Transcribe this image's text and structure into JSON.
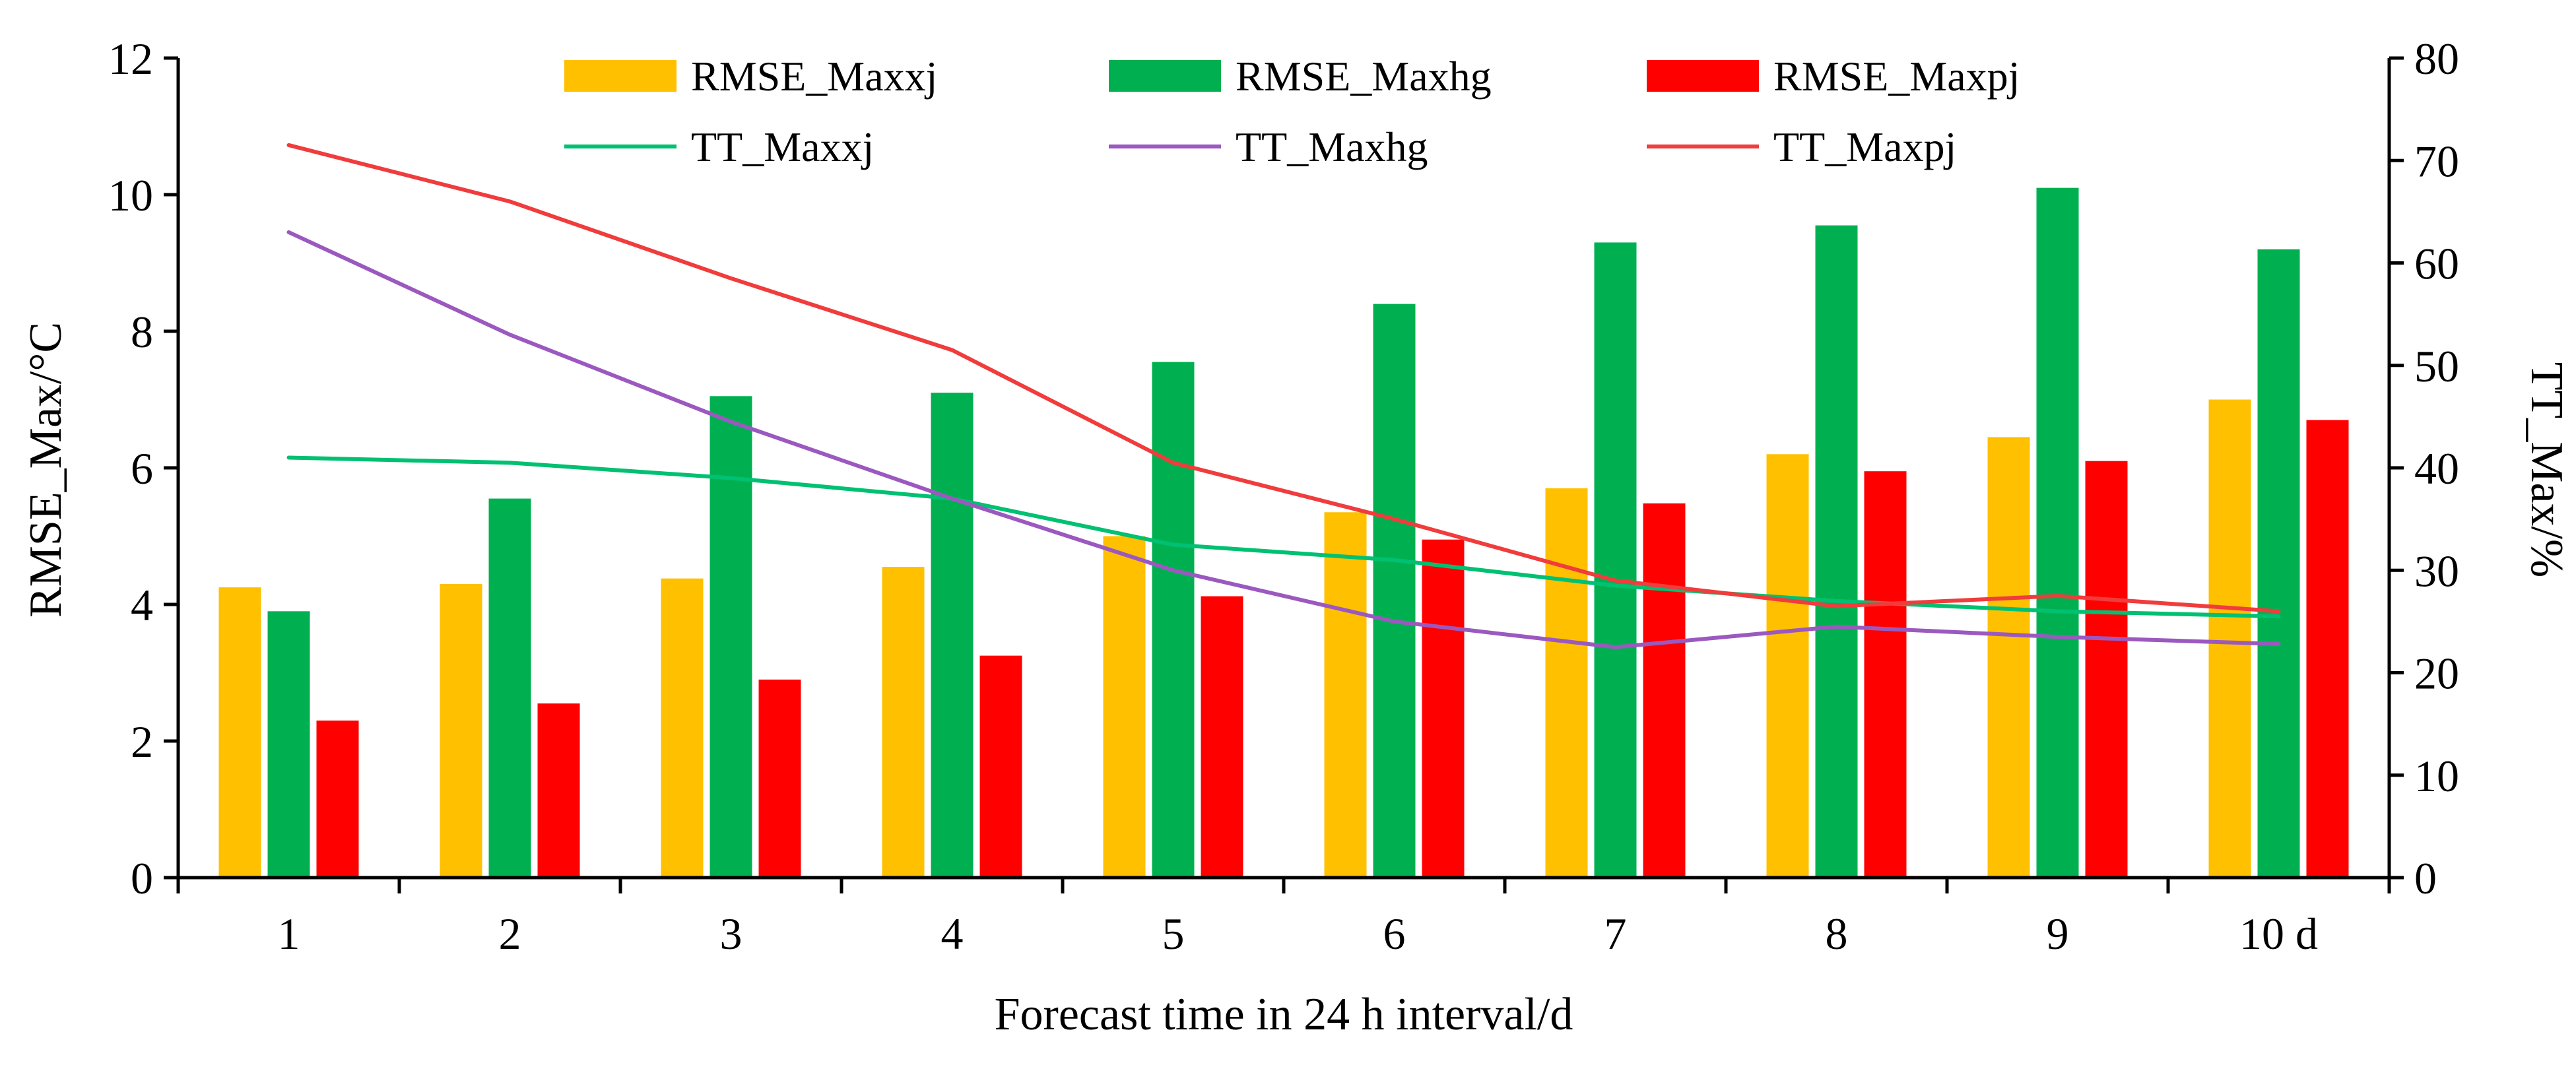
{
  "chart_data": {
    "type": "bar",
    "xlabel": "Forecast time in 24 h interval/d",
    "ylabel_left": "RMSE_Max/°C",
    "ylabel_right": "TT_Max/%",
    "categories": [
      "1",
      "2",
      "3",
      "4",
      "5",
      "6",
      "7",
      "8",
      "9",
      "10 d"
    ],
    "ylim_left": [
      0,
      12
    ],
    "ylim_right": [
      0,
      80
    ],
    "yticks_left": [
      "0",
      "2",
      "4",
      "6",
      "8",
      "10",
      "12"
    ],
    "yticks_right": [
      "0",
      "10",
      "20",
      "30",
      "40",
      "50",
      "60",
      "70",
      "80"
    ],
    "grid": false,
    "legend_position": "top-center",
    "bar_series": [
      {
        "name": "RMSE_Maxxj",
        "color": "#FFC000",
        "axis": "left",
        "values": [
          4.25,
          4.3,
          4.38,
          4.55,
          5.0,
          5.35,
          5.7,
          6.2,
          6.45,
          7.0
        ]
      },
      {
        "name": "RMSE_Maxhg",
        "color": "#00B050",
        "axis": "left",
        "values": [
          3.9,
          5.55,
          7.05,
          7.1,
          7.55,
          8.4,
          9.3,
          9.55,
          10.1,
          9.2
        ]
      },
      {
        "name": "RMSE_Maxpj",
        "color": "#FF0000",
        "axis": "left",
        "values": [
          2.3,
          2.55,
          2.9,
          3.25,
          4.12,
          4.95,
          5.48,
          5.95,
          6.1,
          6.7
        ]
      }
    ],
    "line_series": [
      {
        "name": "TT_Maxxj",
        "color": "#00C072",
        "axis": "right",
        "values": [
          41.0,
          40.5,
          39.0,
          37.0,
          32.5,
          31.0,
          28.5,
          27.0,
          26.0,
          25.5
        ]
      },
      {
        "name": "TT_Maxhg",
        "color": "#9B59C0",
        "axis": "right",
        "values": [
          63.0,
          53.0,
          44.5,
          37.0,
          30.0,
          25.0,
          22.5,
          24.5,
          23.5,
          22.8
        ]
      },
      {
        "name": "TT_Maxpj",
        "color": "#F03C3C",
        "axis": "right",
        "values": [
          71.5,
          66.0,
          58.5,
          51.5,
          40.5,
          35.0,
          29.0,
          26.5,
          27.5,
          26.0
        ]
      }
    ]
  }
}
